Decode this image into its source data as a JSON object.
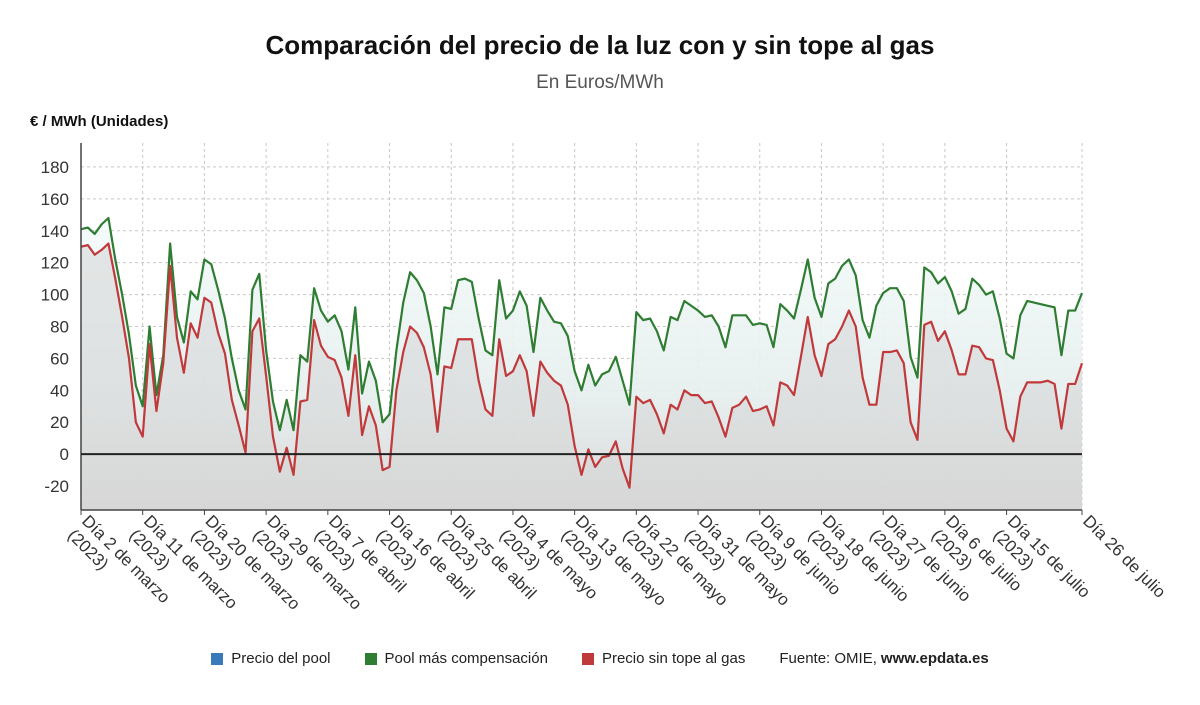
{
  "chart_data": {
    "type": "line",
    "title": "Comparación del precio de la luz con y sin tope al gas",
    "subtitle": "En Euros/MWh",
    "ylabel": "€ / MWh (Unidades)",
    "ylim": [
      -35,
      195
    ],
    "yticks": [
      -20,
      0,
      20,
      40,
      60,
      80,
      100,
      120,
      140,
      160,
      180
    ],
    "grid": true,
    "legend_position": "bottom",
    "xticks": [
      {
        "label": [
          "Día 2 de marzo",
          "(2023)"
        ],
        "i": 0
      },
      {
        "label": [
          "Día 11 de marzo",
          "(2023)"
        ],
        "i": 9
      },
      {
        "label": [
          "Día 20 de marzo",
          "(2023)"
        ],
        "i": 18
      },
      {
        "label": [
          "Día 29 de marzo",
          "(2023)"
        ],
        "i": 27
      },
      {
        "label": [
          "Día 7 de abril",
          "(2023)"
        ],
        "i": 36
      },
      {
        "label": [
          "Día 16 de abril",
          "(2023)"
        ],
        "i": 45
      },
      {
        "label": [
          "Día 25 de abril",
          "(2023)"
        ],
        "i": 54
      },
      {
        "label": [
          "Día 4 de mayo",
          "(2023)"
        ],
        "i": 63
      },
      {
        "label": [
          "Día 13 de mayo",
          "(2023)"
        ],
        "i": 72
      },
      {
        "label": [
          "Día 22 de mayo",
          "(2023)"
        ],
        "i": 81
      },
      {
        "label": [
          "Día 31 de mayo",
          "(2023)"
        ],
        "i": 90
      },
      {
        "label": [
          "Día 9 de junio",
          "(2023)"
        ],
        "i": 99
      },
      {
        "label": [
          "Día 18 de junio",
          "(2023)"
        ],
        "i": 108
      },
      {
        "label": [
          "Día 27 de junio",
          "(2023)"
        ],
        "i": 117
      },
      {
        "label": [
          "Día 6 de julio",
          "(2023)"
        ],
        "i": 126
      },
      {
        "label": [
          "Día 15 de julio",
          "(2023)"
        ],
        "i": 135
      },
      {
        "label": [
          "Día 26 de julio",
          ""
        ],
        "i": 146
      }
    ],
    "series": [
      {
        "name": "Precio del pool",
        "color": "#3a7ab8",
        "values": []
      },
      {
        "name": "Pool más compensación",
        "color": "#2e7d32",
        "values": [
          141,
          142,
          138,
          144,
          148,
          122,
          100,
          75,
          43,
          30,
          80,
          37,
          62,
          132,
          86,
          70,
          102,
          97,
          122,
          119,
          103,
          85,
          60,
          40,
          28,
          103,
          113,
          65,
          33,
          15,
          34,
          15,
          62,
          58,
          104,
          90,
          83,
          87,
          77,
          53,
          92,
          38,
          58,
          46,
          20,
          25,
          65,
          95,
          114,
          109,
          101,
          80,
          50,
          92,
          91,
          109,
          110,
          108,
          85,
          65,
          62,
          109,
          85,
          90,
          102,
          93,
          64,
          98,
          90,
          83,
          82,
          74,
          52,
          40,
          56,
          43,
          50,
          52,
          61,
          46,
          31,
          89,
          84,
          85,
          77,
          65,
          86,
          84,
          96,
          93,
          90,
          86,
          87,
          80,
          67,
          87,
          87,
          87,
          81,
          82,
          81,
          67,
          94,
          90,
          85,
          103,
          122,
          98,
          86,
          107,
          110,
          118,
          122,
          112,
          84,
          73,
          93,
          101,
          104,
          104,
          96,
          61,
          48,
          117,
          114,
          107,
          111,
          102,
          88,
          91,
          110,
          106,
          100,
          102,
          85,
          63,
          60,
          87,
          96,
          95,
          94,
          93,
          92,
          62,
          90,
          90,
          101
        ]
      },
      {
        "name": "Precio sin tope al gas",
        "color": "#c0393b",
        "values": [
          130,
          131,
          125,
          128,
          132,
          110,
          86,
          60,
          20,
          11,
          69,
          27,
          57,
          118,
          73,
          51,
          82,
          73,
          98,
          95,
          76,
          63,
          34,
          18,
          1,
          77,
          85,
          49,
          11,
          -11,
          4,
          -13,
          33,
          34,
          84,
          68,
          61,
          59,
          48,
          24,
          62,
          12,
          30,
          18,
          -10,
          -8,
          40,
          64,
          80,
          76,
          67,
          50,
          14,
          55,
          54,
          72,
          72,
          72,
          46,
          28,
          24,
          72,
          49,
          52,
          62,
          52,
          24,
          58,
          51,
          46,
          43,
          31,
          5,
          -13,
          3,
          -8,
          -2,
          -1,
          8,
          -9,
          -21,
          36,
          32,
          34,
          25,
          13,
          31,
          28,
          40,
          37,
          37,
          32,
          33,
          23,
          11,
          29,
          31,
          36,
          27,
          28,
          30,
          18,
          45,
          43,
          37,
          61,
          86,
          62,
          49,
          69,
          72,
          80,
          90,
          80,
          48,
          31,
          31,
          64,
          64,
          65,
          57,
          20,
          9,
          81,
          83,
          71,
          77,
          65,
          50,
          50,
          68,
          67,
          60,
          59,
          40,
          16,
          8,
          36,
          45,
          45,
          45,
          46,
          44,
          16,
          44,
          44,
          57
        ]
      }
    ]
  },
  "legend": {
    "items": [
      {
        "label": "Precio del pool",
        "color": "#3a7ab8"
      },
      {
        "label": "Pool más compensación",
        "color": "#2e7d32"
      },
      {
        "label": "Precio sin tope al gas",
        "color": "#c0393b"
      }
    ],
    "source_prefix": "Fuente: OMIE,",
    "source_site": "www.epdata.es"
  }
}
